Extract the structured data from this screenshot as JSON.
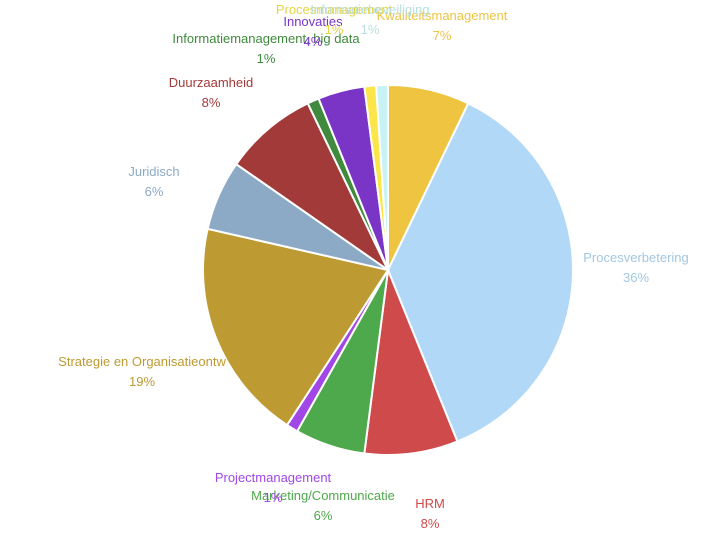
{
  "chart_data": {
    "type": "pie",
    "title": "",
    "start_angle_deg": 0,
    "direction": "clockwise",
    "slices": [
      {
        "label": "Kwaliteitsmanagement",
        "value": 7,
        "pct_label": "7%",
        "color": "#EEC441"
      },
      {
        "label": "Procesverbetering",
        "value": 36,
        "pct_label": "36%",
        "color": "#B1D8F6"
      },
      {
        "label": "HRM",
        "value": 8,
        "pct_label": "8%",
        "color": "#CF4A4A"
      },
      {
        "label": "Marketing/Communicatie",
        "value": 6,
        "pct_label": "6%",
        "color": "#4EA84C"
      },
      {
        "label": "Projectmanagement",
        "value": 1,
        "pct_label": "1%",
        "color": "#A047E6"
      },
      {
        "label": "Strategie en Organisatieontw",
        "value": 19,
        "pct_label": "19%",
        "color": "#BE9A32"
      },
      {
        "label": "Juridisch",
        "value": 6,
        "pct_label": "6%",
        "color": "#8CAAC6"
      },
      {
        "label": "Duurzaamheid",
        "value": 8,
        "pct_label": "8%",
        "color": "#A33A3A"
      },
      {
        "label": "Informatiemanagement, big data",
        "value": 1,
        "pct_label": "1%",
        "color": "#3F8A3C"
      },
      {
        "label": "Innovaties",
        "value": 4,
        "pct_label": "4%",
        "color": "#7A35C6"
      },
      {
        "label": "Procesmanagement",
        "value": 1,
        "pct_label": "1%",
        "color": "#FBE64A"
      },
      {
        "label": "Informatiebeveiliging",
        "value": 1,
        "pct_label": "1%",
        "color": "#C8F3F4"
      }
    ]
  }
}
